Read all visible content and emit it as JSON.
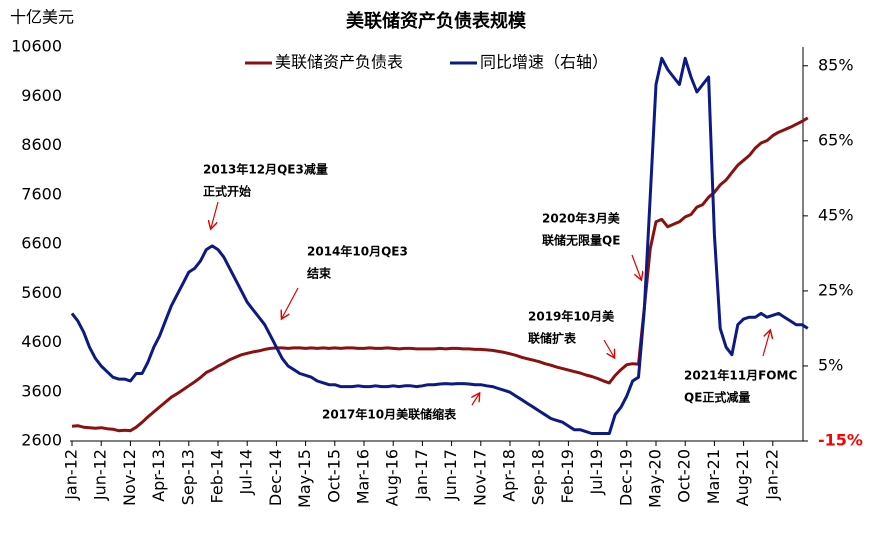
{
  "chart_data": {
    "type": "line",
    "title": "美联储资产负债表规模",
    "y_label": "十亿美元",
    "legend": "top",
    "grid": false,
    "categories": [
      "Jan-12",
      null,
      null,
      null,
      null,
      "Jun-12",
      null,
      null,
      null,
      null,
      "Nov-12",
      null,
      null,
      null,
      null,
      "Apr-13",
      null,
      null,
      null,
      null,
      "Sep-13",
      null,
      null,
      null,
      null,
      "Feb-14",
      null,
      null,
      null,
      null,
      "Jul-14",
      null,
      null,
      null,
      null,
      "Dec-14",
      null,
      null,
      null,
      null,
      "May-15",
      null,
      null,
      null,
      null,
      "Oct-15",
      null,
      null,
      null,
      null,
      "Mar-16",
      null,
      null,
      null,
      null,
      "Aug-16",
      null,
      null,
      null,
      null,
      "Jan-17",
      null,
      null,
      null,
      null,
      "Jun-17",
      null,
      null,
      null,
      null,
      "Nov-17",
      null,
      null,
      null,
      null,
      "Apr-18",
      null,
      null,
      null,
      null,
      "Sep-18",
      null,
      null,
      null,
      null,
      "Feb-19",
      null,
      null,
      null,
      null,
      "Jul-19",
      null,
      null,
      null,
      null,
      "Dec-19",
      null,
      null,
      null,
      null,
      "May-20",
      null,
      null,
      null,
      null,
      "Oct-20",
      null,
      null,
      null,
      null,
      "Mar-21",
      null,
      null,
      null,
      null,
      "Aug-21",
      null,
      null,
      null,
      null,
      "Jan-22",
      null,
      null,
      null,
      null,
      null,
      null
    ],
    "series": [
      {
        "name": "美联储资产负债表",
        "color": "#8b1010",
        "axis": "y",
        "values": [
          2900,
          2910,
          2880,
          2870,
          2860,
          2870,
          2850,
          2840,
          2810,
          2820,
          2810,
          2880,
          2980,
          3090,
          3190,
          3290,
          3390,
          3490,
          3560,
          3640,
          3720,
          3800,
          3890,
          3990,
          4050,
          4120,
          4180,
          4250,
          4300,
          4350,
          4380,
          4410,
          4430,
          4460,
          4480,
          4490,
          4490,
          4480,
          4490,
          4490,
          4480,
          4490,
          4480,
          4490,
          4480,
          4490,
          4480,
          4490,
          4490,
          4480,
          4480,
          4490,
          4480,
          4480,
          4490,
          4480,
          4470,
          4480,
          4480,
          4470,
          4470,
          4470,
          4470,
          4480,
          4470,
          4480,
          4480,
          4470,
          4470,
          4460,
          4460,
          4450,
          4440,
          4420,
          4400,
          4370,
          4340,
          4300,
          4270,
          4240,
          4210,
          4170,
          4140,
          4100,
          4070,
          4040,
          4010,
          3980,
          3940,
          3910,
          3870,
          3820,
          3780,
          3930,
          4050,
          4150,
          4170,
          4160,
          5300,
          6500,
          7050,
          7100,
          6950,
          7000,
          7050,
          7150,
          7200,
          7350,
          7400,
          7550,
          7650,
          7800,
          7900,
          8050,
          8200,
          8300,
          8400,
          8550,
          8650,
          8700,
          8800,
          8870,
          8920,
          8970,
          9030,
          9090,
          9160
        ]
      },
      {
        "name": "同比增速（右轴）",
        "color": "#0c1a85",
        "axis": "y2",
        "values": [
          19,
          17,
          14,
          10,
          7,
          5,
          3.5,
          2,
          1.5,
          1.5,
          1,
          3,
          3,
          6,
          10,
          13,
          17,
          21,
          24,
          27,
          30,
          31,
          33,
          36,
          37,
          36,
          34,
          31,
          28,
          25,
          22,
          20,
          18,
          16,
          13,
          10,
          7,
          5,
          4,
          3,
          2.5,
          2,
          1,
          0.5,
          0,
          0,
          -0.5,
          -0.5,
          -0.5,
          -0.3,
          -0.5,
          -0.5,
          -0.3,
          -0.5,
          -0.5,
          -0.3,
          -0.5,
          -0.3,
          -0.3,
          -0.5,
          -0.3,
          0,
          0,
          0.2,
          0.3,
          0.2,
          0.3,
          0.3,
          0.2,
          0,
          0,
          -0.3,
          -0.5,
          -1,
          -1.5,
          -2,
          -3,
          -4,
          -5,
          -6,
          -7,
          -8,
          -9,
          -9.5,
          -10,
          -11,
          -12,
          -12,
          -12.5,
          -13,
          -13,
          -13,
          -13,
          -8,
          -6,
          -3,
          1,
          2,
          20,
          50,
          80,
          87,
          84,
          82,
          80,
          87,
          82,
          78,
          80,
          82,
          40,
          15,
          10,
          8,
          16,
          17.5,
          18,
          18,
          19,
          18,
          18.5,
          19,
          18,
          17,
          16,
          16,
          15
        ]
      }
    ],
    "ylim": [
      2600,
      10600
    ],
    "yticks": [
      2600,
      3600,
      4600,
      5600,
      6600,
      7600,
      8600,
      9600,
      10600
    ],
    "y2lim": [
      -15,
      90
    ],
    "y2ticks": [
      {
        "value": 85,
        "label": "85%"
      },
      {
        "value": 65,
        "label": "65%"
      },
      {
        "value": 45,
        "label": "45%"
      },
      {
        "value": 25,
        "label": "25%"
      },
      {
        "value": 5,
        "label": "5%"
      },
      {
        "value": -15,
        "label": "-15%",
        "color": "#ff0000"
      }
    ],
    "annotations": [
      {
        "lines": [
          "2013年12月QE3减量",
          "正式开始"
        ]
      },
      {
        "lines": [
          "2014年10月QE3",
          "结束"
        ]
      },
      {
        "lines": [
          "2017年10月美联储缩表"
        ]
      },
      {
        "lines": [
          "2019年10月美",
          "联储扩表"
        ]
      },
      {
        "lines": [
          "2020年3月美",
          "联储无限量QE"
        ]
      },
      {
        "lines": [
          "2021年11月FOMC",
          "QE正式减量"
        ]
      }
    ]
  }
}
